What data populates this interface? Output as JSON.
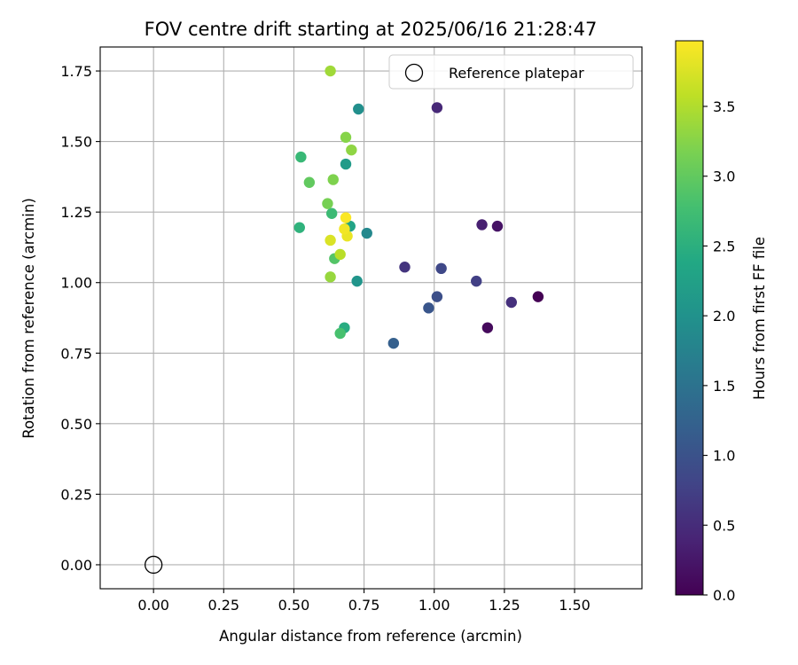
{
  "chart_data": {
    "type": "scatter",
    "title": "FOV centre drift starting at 2025/06/16 21:28:47",
    "xlabel": "Angular distance from reference (arcmin)",
    "ylabel": "Rotation from reference (arcmin)",
    "xlim": [
      -0.19,
      1.74
    ],
    "ylim": [
      -0.085,
      1.835
    ],
    "xticks": [
      0.0,
      0.25,
      0.5,
      0.75,
      1.0,
      1.25,
      1.5
    ],
    "xtick_labels": [
      "0.00",
      "0.25",
      "0.50",
      "0.75",
      "1.00",
      "1.25",
      "1.50"
    ],
    "yticks": [
      0.0,
      0.25,
      0.5,
      0.75,
      1.0,
      1.25,
      1.5,
      1.75
    ],
    "ytick_labels": [
      "0.00",
      "0.25",
      "0.50",
      "0.75",
      "1.00",
      "1.25",
      "1.50",
      "1.75"
    ],
    "grid": true,
    "legend": {
      "placement": "top-right",
      "entries": [
        {
          "label": "Reference platepar",
          "marker": "open-circle",
          "x": 0.0,
          "y": 0.0
        }
      ]
    },
    "colorbar": {
      "label": "Hours from first FF file",
      "colormap": "viridis",
      "range": [
        0.0,
        3.97
      ],
      "ticks": [
        0.0,
        0.5,
        1.0,
        1.5,
        2.0,
        2.5,
        3.0,
        3.5
      ],
      "tick_labels": [
        "0.0",
        "0.5",
        "1.0",
        "1.5",
        "2.0",
        "2.5",
        "3.0",
        "3.5"
      ]
    },
    "points": [
      {
        "x": 1.37,
        "y": 0.95,
        "hours": 0.0
      },
      {
        "x": 1.19,
        "y": 0.84,
        "hours": 0.1
      },
      {
        "x": 1.225,
        "y": 1.2,
        "hours": 0.2
      },
      {
        "x": 1.17,
        "y": 1.205,
        "hours": 0.35
      },
      {
        "x": 1.01,
        "y": 1.62,
        "hours": 0.45
      },
      {
        "x": 1.275,
        "y": 0.93,
        "hours": 0.55
      },
      {
        "x": 0.895,
        "y": 1.055,
        "hours": 0.6
      },
      {
        "x": 1.15,
        "y": 1.005,
        "hours": 0.75
      },
      {
        "x": 1.025,
        "y": 1.05,
        "hours": 0.85
      },
      {
        "x": 1.01,
        "y": 0.95,
        "hours": 0.95
      },
      {
        "x": 0.98,
        "y": 0.91,
        "hours": 1.05
      },
      {
        "x": 0.855,
        "y": 0.785,
        "hours": 1.2
      },
      {
        "x": 0.76,
        "y": 1.175,
        "hours": 1.85
      },
      {
        "x": 0.73,
        "y": 1.615,
        "hours": 1.95
      },
      {
        "x": 0.725,
        "y": 1.005,
        "hours": 2.05
      },
      {
        "x": 0.685,
        "y": 1.42,
        "hours": 2.15
      },
      {
        "x": 0.7,
        "y": 1.2,
        "hours": 2.3
      },
      {
        "x": 0.68,
        "y": 0.84,
        "hours": 2.45
      },
      {
        "x": 0.52,
        "y": 1.195,
        "hours": 2.55
      },
      {
        "x": 0.525,
        "y": 1.445,
        "hours": 2.65
      },
      {
        "x": 0.635,
        "y": 1.245,
        "hours": 2.7
      },
      {
        "x": 0.665,
        "y": 0.82,
        "hours": 2.8
      },
      {
        "x": 0.645,
        "y": 1.085,
        "hours": 2.9
      },
      {
        "x": 0.555,
        "y": 1.355,
        "hours": 3.0
      },
      {
        "x": 0.62,
        "y": 1.28,
        "hours": 3.15
      },
      {
        "x": 0.64,
        "y": 1.365,
        "hours": 3.2
      },
      {
        "x": 0.685,
        "y": 1.515,
        "hours": 3.25
      },
      {
        "x": 0.705,
        "y": 1.47,
        "hours": 3.3
      },
      {
        "x": 0.63,
        "y": 1.02,
        "hours": 3.35
      },
      {
        "x": 0.63,
        "y": 1.75,
        "hours": 3.4
      },
      {
        "x": 0.665,
        "y": 1.1,
        "hours": 3.55
      },
      {
        "x": 0.63,
        "y": 1.15,
        "hours": 3.75
      },
      {
        "x": 0.69,
        "y": 1.165,
        "hours": 3.85
      },
      {
        "x": 0.68,
        "y": 1.19,
        "hours": 3.9
      },
      {
        "x": 0.685,
        "y": 1.23,
        "hours": 3.95
      }
    ]
  }
}
